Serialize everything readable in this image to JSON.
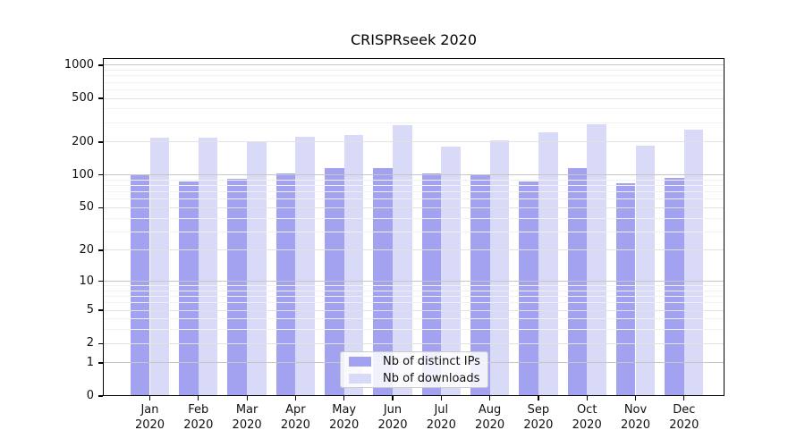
{
  "title": "CRISPRseek 2020",
  "chart_data": {
    "type": "bar",
    "title": "CRISPRseek 2020",
    "yscale": "log1p",
    "grid": true,
    "ylim": [
      0,
      1160
    ],
    "yticks": [
      0,
      1,
      2,
      5,
      10,
      20,
      50,
      100,
      200,
      500,
      1000
    ],
    "minor_yticks": [
      3,
      4,
      6,
      7,
      8,
      9,
      30,
      40,
      60,
      70,
      80,
      90,
      300,
      400,
      600,
      700,
      800,
      900
    ],
    "categories": [
      {
        "label": "Jan",
        "sub": "2020"
      },
      {
        "label": "Feb",
        "sub": "2020"
      },
      {
        "label": "Mar",
        "sub": "2020"
      },
      {
        "label": "Apr",
        "sub": "2020"
      },
      {
        "label": "May",
        "sub": "2020"
      },
      {
        "label": "Jun",
        "sub": "2020"
      },
      {
        "label": "Jul",
        "sub": "2020"
      },
      {
        "label": "Aug",
        "sub": "2020"
      },
      {
        "label": "Sep",
        "sub": "2020"
      },
      {
        "label": "Oct",
        "sub": "2020"
      },
      {
        "label": "Nov",
        "sub": "2020"
      },
      {
        "label": "Dec",
        "sub": "2020"
      }
    ],
    "series": [
      {
        "name": "Nb of distinct IPs",
        "color": "#a2a2f0",
        "values": [
          100,
          87,
          93,
          104,
          115,
          116,
          104,
          99,
          87,
          117,
          84,
          94
        ]
      },
      {
        "name": "Nb of downloads",
        "color": "#d9d9f8",
        "values": [
          219,
          221,
          202,
          223,
          232,
          287,
          183,
          207,
          245,
          292,
          185,
          259
        ]
      }
    ],
    "legend_position": "lower center",
    "axes": {
      "background": "#ffffff",
      "spine_color": "#000000",
      "grid_major_color": "#c6c6c6",
      "grid_mid_color": "#e2e2e2",
      "grid_minor_color": "#f1f1f1",
      "text_color": "#111111"
    }
  }
}
